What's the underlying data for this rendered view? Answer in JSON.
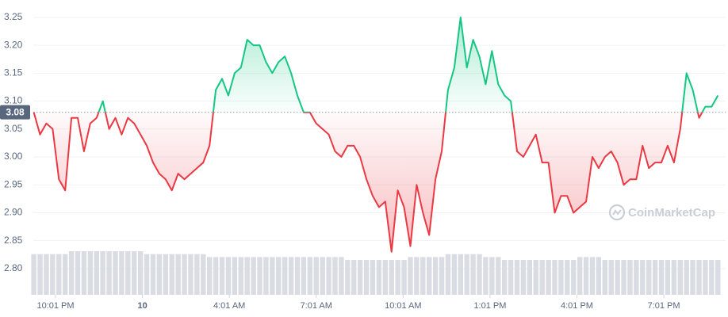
{
  "chart_data": {
    "type": "line",
    "x": [
      -45,
      -32,
      -19,
      -6,
      7,
      20,
      33,
      46,
      59,
      72,
      85,
      98,
      111,
      124,
      137,
      150,
      163,
      176,
      189,
      202,
      215,
      228,
      241,
      254,
      267,
      280,
      293,
      306,
      319,
      332,
      345,
      358,
      371,
      384,
      397,
      410,
      423,
      436,
      449,
      462,
      475,
      488,
      501,
      514,
      527,
      540,
      553,
      566,
      579,
      592,
      605,
      618,
      631,
      644,
      657,
      670,
      683,
      696,
      709,
      722,
      735,
      748,
      761,
      774,
      787,
      800,
      813,
      826,
      839,
      852,
      865,
      878,
      891,
      904,
      917,
      930,
      943,
      956,
      969,
      982,
      995,
      1008,
      1021,
      1034,
      1047,
      1060,
      1073,
      1086,
      1099,
      1112,
      1125,
      1138,
      1151,
      1164,
      1177,
      1190,
      1203,
      1216,
      1229,
      1242,
      1255,
      1268,
      1281,
      1294,
      1307,
      1320,
      1333,
      1346,
      1359,
      1372
    ],
    "xlim": [
      -46,
      1388
    ],
    "xticks": [
      {
        "value": 0,
        "label": "10:01 PM"
      },
      {
        "value": 180,
        "label": "10"
      },
      {
        "value": 360,
        "label": "4:01 AM"
      },
      {
        "value": 540,
        "label": "7:01 AM"
      },
      {
        "value": 720,
        "label": "10:01 AM"
      },
      {
        "value": 900,
        "label": "1:01 PM"
      },
      {
        "value": 1080,
        "label": "4:01 PM"
      },
      {
        "value": 1260,
        "label": "7:01 PM"
      }
    ],
    "ylim": [
      2.753,
      3.274
    ],
    "yticks": [
      {
        "value": 2.8,
        "label": "2.80"
      },
      2.85,
      {
        "value": 2.9,
        "label": "2.90"
      },
      2.95,
      {
        "value": 3.0,
        "label": "3.00"
      },
      3.05,
      {
        "value": 3.1,
        "label": "3.10"
      },
      3.15,
      {
        "value": 3.2,
        "label": "3.20"
      },
      3.25
    ],
    "y2lim": [
      0,
      100
    ],
    "grid": true,
    "reference_line": 3.08,
    "watermark": "CoinMarketCap",
    "series": [
      {
        "type": "line",
        "up_color": "#16c784",
        "down_color": "#ea3943",
        "values": [
          3.08,
          3.04,
          3.06,
          3.05,
          2.96,
          2.94,
          3.07,
          3.07,
          3.01,
          3.06,
          3.07,
          3.1,
          3.05,
          3.07,
          3.04,
          3.07,
          3.06,
          3.04,
          3.02,
          2.99,
          2.97,
          2.96,
          2.94,
          2.97,
          2.96,
          2.97,
          2.98,
          2.99,
          3.02,
          3.12,
          3.14,
          3.11,
          3.15,
          3.16,
          3.21,
          3.2,
          3.2,
          3.17,
          3.15,
          3.17,
          3.18,
          3.15,
          3.11,
          3.08,
          3.08,
          3.06,
          3.05,
          3.04,
          3.01,
          3.0,
          3.02,
          3.02,
          3.0,
          2.96,
          2.93,
          2.91,
          2.92,
          2.83,
          2.94,
          2.91,
          2.84,
          2.95,
          2.9,
          2.86,
          2.96,
          3.01,
          3.12,
          3.16,
          3.25,
          3.16,
          3.21,
          3.18,
          3.13,
          3.19,
          3.13,
          3.11,
          3.1,
          3.01,
          3.0,
          3.02,
          3.04,
          2.99,
          2.99,
          2.9,
          2.93,
          2.93,
          2.9,
          2.91,
          2.92,
          3.0,
          2.98,
          3.0,
          3.01,
          2.99,
          2.95,
          2.96,
          2.96,
          3.02,
          2.98,
          2.99,
          2.99,
          3.02,
          2.99,
          3.05,
          3.15,
          3.12,
          3.07,
          3.09,
          3.09,
          3.11
        ]
      },
      {
        "type": "bar",
        "axis": "y2",
        "color": "#d9dce2",
        "values": [
          14,
          14,
          14,
          14,
          14,
          14,
          15,
          15,
          15,
          15,
          15,
          15,
          15,
          15,
          15,
          15,
          15,
          15,
          14,
          14,
          14,
          14,
          14,
          14,
          14,
          14,
          14,
          14,
          13,
          13,
          13,
          13,
          13,
          13,
          13,
          13,
          13,
          13,
          13,
          13,
          13,
          13,
          13,
          13,
          13,
          13,
          13,
          13,
          13,
          13,
          12,
          12,
          12,
          12,
          12,
          12,
          12,
          12,
          12,
          12,
          13,
          13,
          13,
          13,
          13,
          13,
          14,
          14,
          14,
          14,
          14,
          14,
          13,
          13,
          13,
          12,
          12,
          12,
          12,
          12,
          12,
          12,
          12,
          12,
          12,
          12,
          12,
          13,
          13,
          13,
          13,
          12,
          12,
          12,
          12,
          12,
          12,
          12,
          12,
          12,
          12,
          12,
          12,
          12,
          12,
          12,
          12,
          12,
          12,
          12
        ]
      }
    ]
  }
}
